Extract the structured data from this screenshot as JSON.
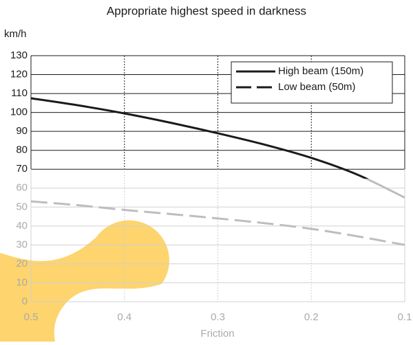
{
  "chart_data": {
    "type": "line",
    "title": "Appropriate highest speed in darkness",
    "y_label": "km/h",
    "x_label": "Friction",
    "x": [
      0.5,
      0.45,
      0.4,
      0.35,
      0.3,
      0.25,
      0.2,
      0.15,
      0.1
    ],
    "series": [
      {
        "name": "High beam (150m)",
        "color": "#1a1a1a",
        "linestyle": "solid",
        "values": [
          107.5,
          103.8,
          99.5,
          94.5,
          89,
          83,
          76,
          67,
          55
        ]
      },
      {
        "name": "Low beam (50m)",
        "color": "#1a1a1a",
        "linestyle": "dashed",
        "values": [
          53,
          51,
          48.5,
          46.3,
          44,
          41.5,
          38.5,
          34.5,
          30
        ]
      }
    ],
    "xlim": [
      0.5,
      0.1
    ],
    "xticks": [
      0.5,
      0.4,
      0.3,
      0.2,
      0.1
    ],
    "ylim": [
      0,
      130
    ],
    "yticks": [
      0,
      10,
      20,
      30,
      40,
      50,
      60,
      70,
      80,
      90,
      100,
      110,
      120,
      130
    ],
    "grid": true,
    "legend": "upper right"
  }
}
